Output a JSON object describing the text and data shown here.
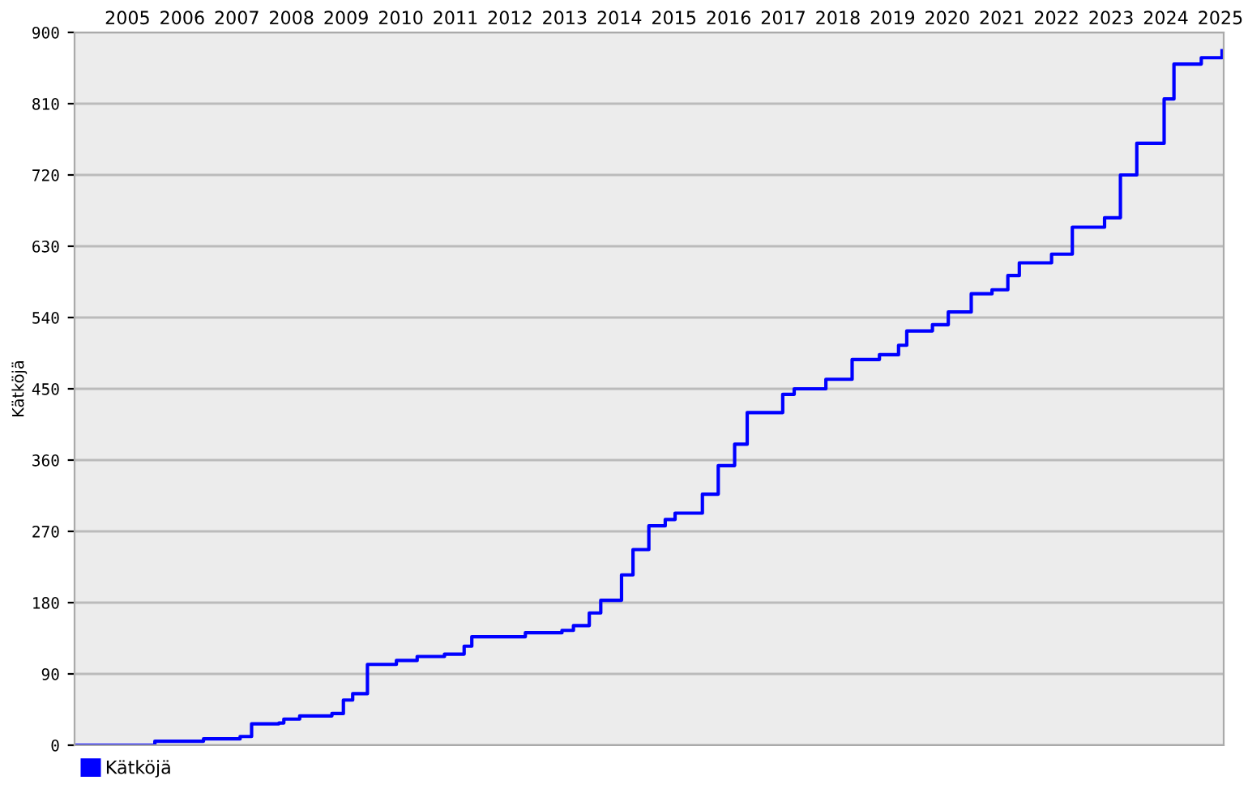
{
  "chart_data": {
    "type": "step",
    "ylabel": "Kätköjä",
    "legend": "bottom left",
    "grid": "y",
    "xlim": [
      2004.53,
      2025.56
    ],
    "xticks": [
      {
        "value": 2005.5,
        "label": "2005"
      },
      {
        "value": 2006.5,
        "label": "2006"
      },
      {
        "value": 2007.5,
        "label": "2007"
      },
      {
        "value": 2008.5,
        "label": "2008"
      },
      {
        "value": 2009.5,
        "label": "2009"
      },
      {
        "value": 2010.5,
        "label": "2010"
      },
      {
        "value": 2011.5,
        "label": "2011"
      },
      {
        "value": 2012.5,
        "label": "2012"
      },
      {
        "value": 2013.5,
        "label": "2013"
      },
      {
        "value": 2014.5,
        "label": "2014"
      },
      {
        "value": 2015.5,
        "label": "2015"
      },
      {
        "value": 2016.5,
        "label": "2016"
      },
      {
        "value": 2017.5,
        "label": "2017"
      },
      {
        "value": 2018.5,
        "label": "2018"
      },
      {
        "value": 2019.5,
        "label": "2019"
      },
      {
        "value": 2020.5,
        "label": "2020"
      },
      {
        "value": 2021.5,
        "label": "2021"
      },
      {
        "value": 2022.5,
        "label": "2022"
      },
      {
        "value": 2023.5,
        "label": "2023"
      },
      {
        "value": 2024.5,
        "label": "2024"
      },
      {
        "value": 2025.5,
        "label": "2025"
      }
    ],
    "ylim": [
      0,
      900
    ],
    "yticks": [
      0,
      90,
      180,
      270,
      360,
      450,
      540,
      630,
      720,
      810,
      900
    ],
    "series": [
      {
        "name": "Kätköjä",
        "color": "#0000ff",
        "x": [
          2004.53,
          2006.0,
          2006.89,
          2007.56,
          2007.77,
          2008.27,
          2008.36,
          2008.65,
          2009.24,
          2009.45,
          2009.62,
          2009.89,
          2010.21,
          2010.42,
          2010.8,
          2011.3,
          2011.66,
          2011.8,
          2012.48,
          2012.78,
          2013.45,
          2013.66,
          2013.95,
          2014.16,
          2014.54,
          2014.75,
          2015.04,
          2015.34,
          2015.52,
          2016.02,
          2016.31,
          2016.61,
          2016.84,
          2017.49,
          2017.7,
          2018.28,
          2018.76,
          2019.26,
          2019.61,
          2019.76,
          2020.23,
          2020.52,
          2020.94,
          2021.32,
          2021.61,
          2021.82,
          2022.41,
          2022.79,
          2023.38,
          2023.67,
          2023.97,
          2024.35,
          2024.47,
          2024.65,
          2025.15,
          2025.53
        ],
        "values": [
          0,
          5,
          8,
          11,
          27,
          28,
          33,
          37,
          40,
          57,
          65,
          102,
          102,
          107,
          112,
          115,
          125,
          137,
          137,
          142,
          145,
          151,
          167,
          183,
          215,
          247,
          277,
          285,
          293,
          317,
          353,
          380,
          420,
          443,
          450,
          462,
          487,
          493,
          505,
          523,
          531,
          547,
          570,
          575,
          593,
          609,
          620,
          654,
          666,
          720,
          760,
          760,
          816,
          860,
          868,
          877
        ]
      }
    ]
  }
}
